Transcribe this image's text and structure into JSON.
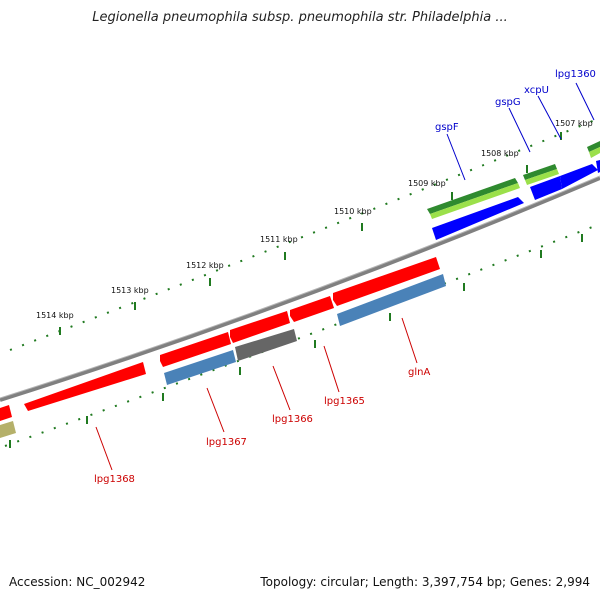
{
  "title": "Legionella pneumophila subsp. pneumophila str. Philadelphia ...",
  "footer": {
    "accession": "Accession: NC_002942",
    "summary": "Topology: circular; Length: 3,397,754 bp; Genes: 2,994"
  },
  "ticks": [
    "1507 kbp",
    "1508 kbp",
    "1509 kbp",
    "1510 kbp",
    "1511 kbp",
    "1512 kbp",
    "1513 kbp",
    "1514 kbp"
  ],
  "genes_forward": [
    "lpg1360",
    "xcpU",
    "gspG",
    "gspF"
  ],
  "genes_reverse": [
    "glnA",
    "lpg1365",
    "lpg1366",
    "lpg1367",
    "lpg1368"
  ],
  "colors": {
    "forward_label": "#0000cc",
    "reverse_label": "#cc0000",
    "red": "#ff0000",
    "blue": "#0000ff",
    "green_dark": "#2f8a2f",
    "green_light": "#9be04a",
    "steel": "#4a82b8",
    "gray": "#666666",
    "olive": "#b5b06a",
    "backbone": "#808080",
    "dot": "#207a20"
  }
}
